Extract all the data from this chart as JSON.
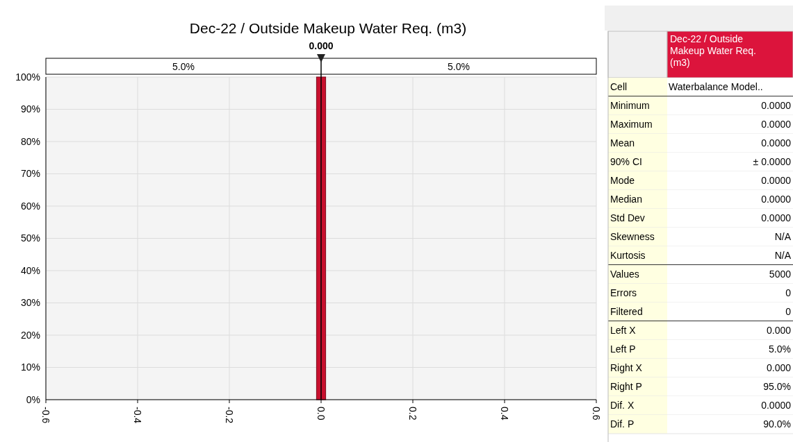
{
  "chart_data": [
    {
      "type": "histogram",
      "title": "Dec-22 / Outside Makeup Water Req. (m3)",
      "bins": [
        -0.01,
        0.01
      ],
      "values": [
        100
      ],
      "color": "#c8102e",
      "xlim": [
        -0.6,
        0.6
      ],
      "xticks": [
        -0.6,
        -0.4,
        -0.2,
        {
          "value": 0,
          "label": "0.0"
        },
        0.2,
        0.4,
        0.6
      ],
      "ylim": [
        0,
        100
      ],
      "yticks": [
        {
          "value": 0,
          "label": "0%"
        },
        {
          "value": 10,
          "label": "10%"
        },
        {
          "value": 20,
          "label": "20%"
        },
        {
          "value": 30,
          "label": "30%"
        },
        {
          "value": 40,
          "label": "40%"
        },
        {
          "value": 50,
          "label": "50%"
        },
        {
          "value": 60,
          "label": "60%"
        },
        {
          "value": 70,
          "label": "70%"
        },
        {
          "value": 80,
          "label": "80%"
        },
        {
          "value": 90,
          "label": "90%"
        },
        {
          "value": 100,
          "label": "100%"
        }
      ],
      "grid": true,
      "ref_lines": [
        {
          "axis": "x",
          "value": 0,
          "label": "0.000"
        }
      ],
      "annotations": [
        "5.0%",
        "5.0%"
      ]
    },
    {
      "type": "other",
      "title": "Dec-22 / Outside Makeup Water Req. (m3)",
      "annotations": [
        "Cell",
        "Waterbalance Model..",
        "Minimum",
        "0.0000",
        "Maximum",
        "0.0000",
        "Mean",
        "0.0000",
        "90% CI",
        "± 0.0000",
        "Mode",
        "0.0000",
        "Median",
        "0.0000",
        "Std Dev",
        "0.0000",
        "Skewness",
        "N/A",
        "Kurtosis",
        "N/A",
        "Values",
        "5000",
        "Errors",
        "0",
        "Filtered",
        "0",
        "Left X",
        "0.000",
        "Left P",
        "5.0%",
        "Right X",
        "0.000",
        "Right P",
        "95.0%",
        "Dif. X",
        "0.0000",
        "Dif. P",
        "90.0%"
      ]
    }
  ]
}
